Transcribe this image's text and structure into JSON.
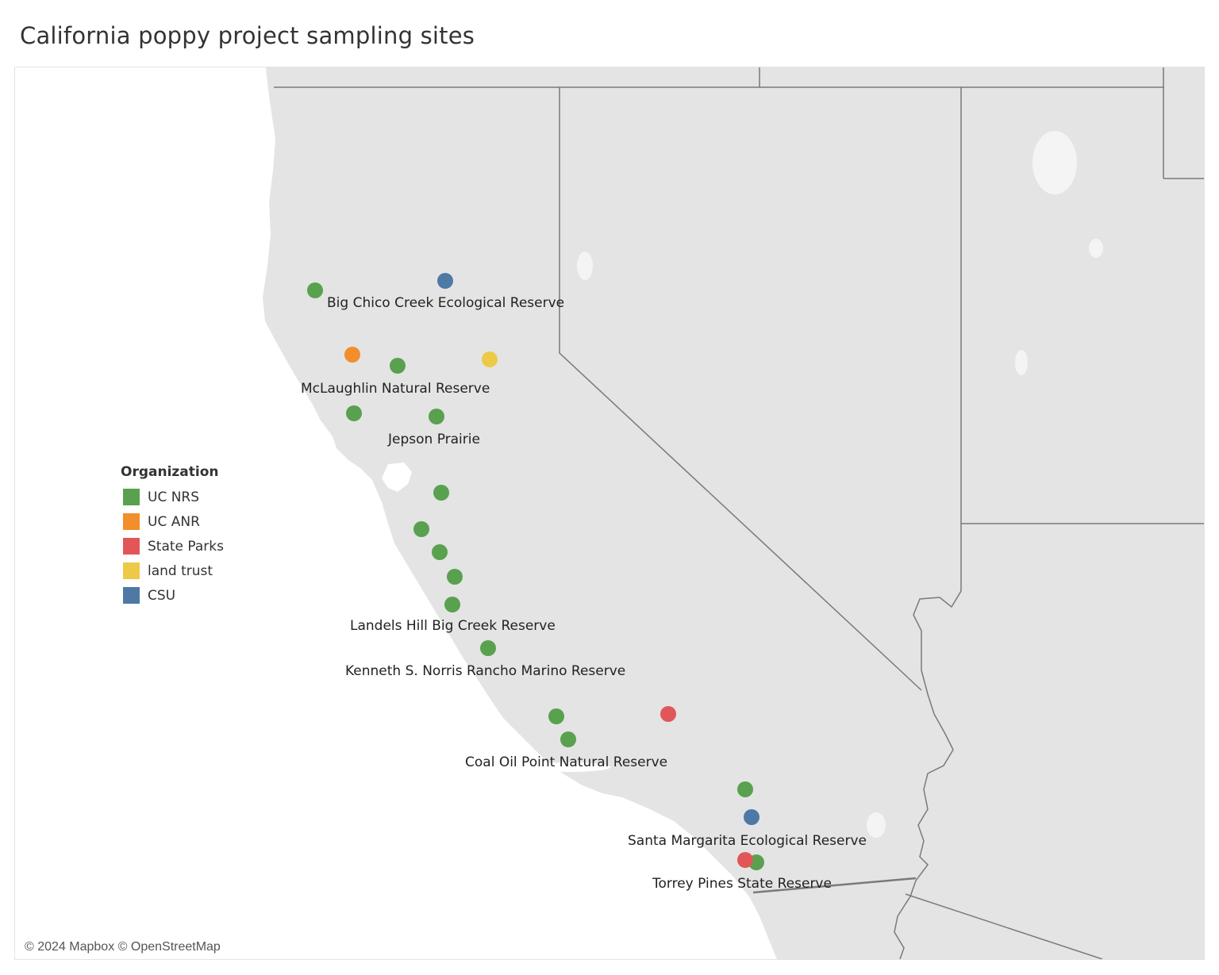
{
  "title": "California poppy project sampling sites",
  "attribution": "© 2024 Mapbox © OpenStreetMap",
  "legend": {
    "title": "Organization",
    "items": [
      {
        "label": "UC NRS",
        "color": "#59a14f"
      },
      {
        "label": "UC ANR",
        "color": "#f28e2b"
      },
      {
        "label": "State Parks",
        "color": "#e15759"
      },
      {
        "label": "land trust",
        "color": "#edc948"
      },
      {
        "label": "CSU",
        "color": "#4e79a7"
      }
    ]
  },
  "site_labels": [
    "Big Chico Creek Ecological Reserve",
    "McLaughlin Natural Reserve",
    "Jepson Prairie",
    "Landels Hill Big Creek Reserve",
    "Kenneth S. Norris Rancho Marino Reserve",
    "Coal Oil Point Natural Reserve",
    "Santa Margarita Ecological Reserve",
    "Torrey Pines State Reserve"
  ],
  "map_colors": {
    "land": "#e4e4e4",
    "water": "#ffffff",
    "border": "#7a7a7a"
  }
}
